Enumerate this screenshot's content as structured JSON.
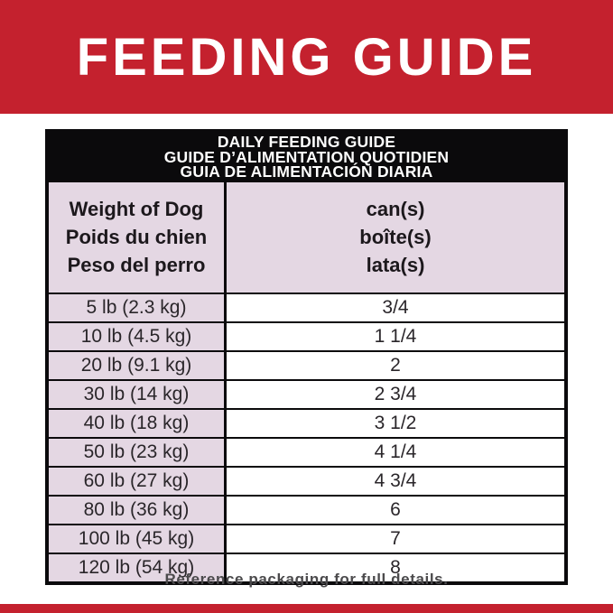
{
  "colors": {
    "red": "#c4212e",
    "pink": "#e4d7e3",
    "line": "#0b0a0c"
  },
  "banner": {
    "title": "FEEDING GUIDE"
  },
  "table": {
    "title_lines": [
      "DAILY FEEDING GUIDE",
      "GUIDE D’ALIMENTATION QUOTIDIEN",
      "GUIA DE ALIMENTACIÓN DIARIA"
    ],
    "weight_header_lines": [
      "Weight of Dog",
      "Poids du chien",
      "Peso del perro"
    ],
    "cans_header_lines": [
      "can(s)",
      "boîte(s)",
      "lata(s)"
    ],
    "rows": [
      {
        "weight": "5 lb (2.3 kg)",
        "cans": "3/4"
      },
      {
        "weight": "10 lb (4.5 kg)",
        "cans": "1 1/4"
      },
      {
        "weight": "20 lb (9.1 kg)",
        "cans": "2"
      },
      {
        "weight": "30 lb (14 kg)",
        "cans": "2 3/4"
      },
      {
        "weight": "40 lb (18 kg)",
        "cans": "3 1/2"
      },
      {
        "weight": "50 lb (23 kg)",
        "cans": "4 1/4"
      },
      {
        "weight": "60 lb (27 kg)",
        "cans": "4 3/4"
      },
      {
        "weight": "80 lb (36 kg)",
        "cans": "6"
      },
      {
        "weight": "100 lb (45 kg)",
        "cans": "7"
      },
      {
        "weight": "120 lb (54 kg)",
        "cans": "8"
      }
    ]
  },
  "footer": {
    "note": "Reference packaging for full details."
  }
}
